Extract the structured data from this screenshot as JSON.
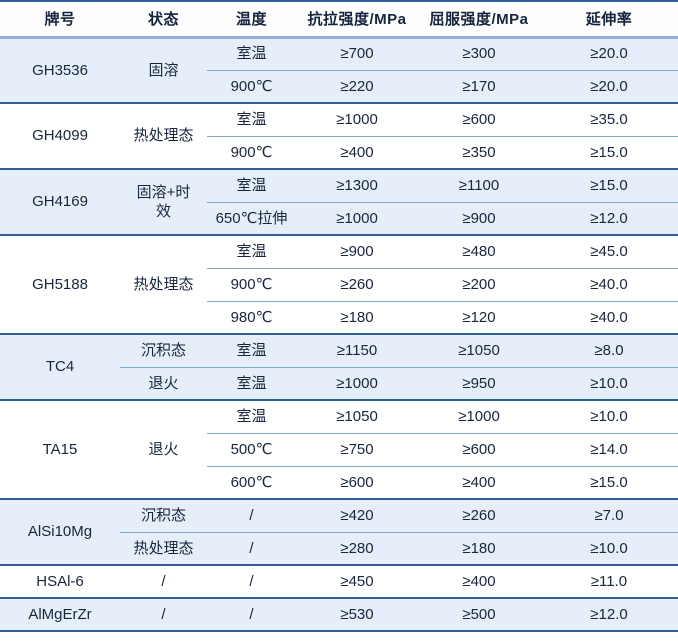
{
  "colors": {
    "text": "#18253f",
    "group_band_blue": "#e5eef9",
    "separator_dark_blue": "#2d6096",
    "header_underline_blue": "#95afd8",
    "sub_divider_blue": "#7ba9cd"
  },
  "table": {
    "columns": [
      "牌号",
      "状态",
      "温度",
      "抗拉强度/MPa",
      "屈服强度/MPa",
      "延伸率"
    ],
    "groups": [
      {
        "grade": "GH3536",
        "states": [
          {
            "state": "固溶",
            "rows": [
              {
                "temp": "室温",
                "tensile": "≥700",
                "yield": "≥300",
                "elongation": "≥20.0"
              },
              {
                "temp": "900℃",
                "tensile": "≥220",
                "yield": "≥170",
                "elongation": "≥20.0"
              }
            ]
          }
        ]
      },
      {
        "grade": "GH4099",
        "states": [
          {
            "state": "热处理态",
            "rows": [
              {
                "temp": "室温",
                "tensile": "≥1000",
                "yield": "≥600",
                "elongation": "≥35.0"
              },
              {
                "temp": "900℃",
                "tensile": "≥400",
                "yield": "≥350",
                "elongation": "≥15.0"
              }
            ]
          }
        ]
      },
      {
        "grade": "GH4169",
        "states": [
          {
            "state": "固溶+时效",
            "rows": [
              {
                "temp": "室温",
                "tensile": "≥1300",
                "yield": "≥1100",
                "elongation": "≥15.0"
              },
              {
                "temp": "650℃拉伸",
                "tensile": "≥1000",
                "yield": "≥900",
                "elongation": "≥12.0"
              }
            ]
          }
        ]
      },
      {
        "grade": "GH5188",
        "states": [
          {
            "state": "热处理态",
            "rows": [
              {
                "temp": "室温",
                "tensile": "≥900",
                "yield": "≥480",
                "elongation": "≥45.0"
              },
              {
                "temp": "900℃",
                "tensile": "≥260",
                "yield": "≥200",
                "elongation": "≥40.0"
              },
              {
                "temp": "980℃",
                "tensile": "≥180",
                "yield": "≥120",
                "elongation": "≥40.0"
              }
            ]
          }
        ]
      },
      {
        "grade": "TC4",
        "states": [
          {
            "state": "沉积态",
            "rows": [
              {
                "temp": "室温",
                "tensile": "≥1150",
                "yield": "≥1050",
                "elongation": "≥8.0"
              }
            ]
          },
          {
            "state": "退火",
            "rows": [
              {
                "temp": "室温",
                "tensile": "≥1000",
                "yield": "≥950",
                "elongation": "≥10.0"
              }
            ]
          }
        ]
      },
      {
        "grade": "TA15",
        "states": [
          {
            "state": "退火",
            "rows": [
              {
                "temp": "室温",
                "tensile": "≥1050",
                "yield": "≥1000",
                "elongation": "≥10.0"
              },
              {
                "temp": "500℃",
                "tensile": "≥750",
                "yield": "≥600",
                "elongation": "≥14.0"
              },
              {
                "temp": "600℃",
                "tensile": "≥600",
                "yield": "≥400",
                "elongation": "≥15.0"
              }
            ]
          }
        ]
      },
      {
        "grade": "AlSi10Mg",
        "states": [
          {
            "state": "沉积态",
            "rows": [
              {
                "temp": "/",
                "tensile": "≥420",
                "yield": "≥260",
                "elongation": "≥7.0"
              }
            ]
          },
          {
            "state": "热处理态",
            "rows": [
              {
                "temp": "/",
                "tensile": "≥280",
                "yield": "≥180",
                "elongation": "≥10.0"
              }
            ]
          }
        ]
      },
      {
        "grade": "HSAl-6",
        "states": [
          {
            "state": "/",
            "rows": [
              {
                "temp": "/",
                "tensile": "≥450",
                "yield": "≥400",
                "elongation": "≥11.0"
              }
            ]
          }
        ]
      },
      {
        "grade": "AlMgErZr",
        "states": [
          {
            "state": "/",
            "rows": [
              {
                "temp": "/",
                "tensile": "≥530",
                "yield": "≥500",
                "elongation": "≥12.0"
              }
            ]
          }
        ]
      }
    ]
  }
}
